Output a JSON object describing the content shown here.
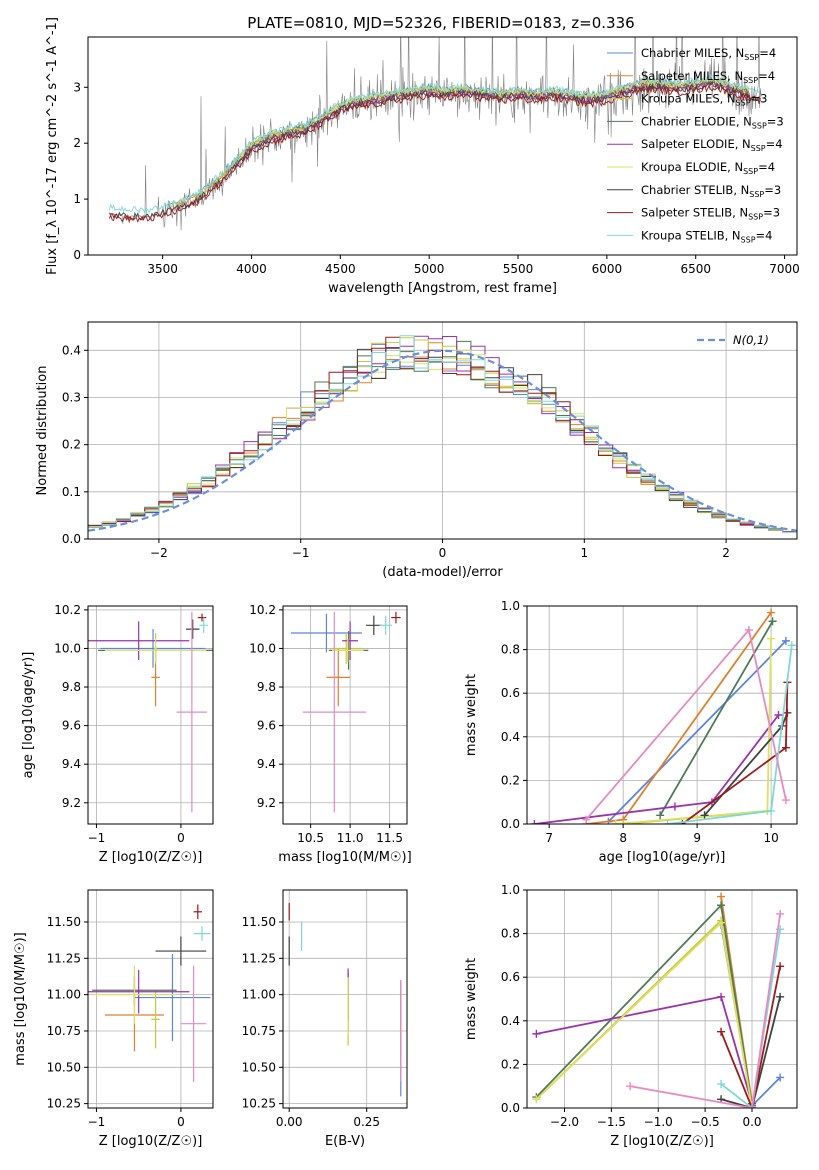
{
  "figure": {
    "title": "PLATE=0810, MJD=52326, FIBERID=0183, z=0.336"
  },
  "colors": {
    "grid": "#b0b0b0",
    "text": "#000000"
  },
  "chart_data": [
    {
      "id": "spectrum",
      "type": "line",
      "xlabel": "wavelength [Angstrom, rest frame]",
      "ylabel": "Flux [f_λ 10^-17 erg cm^-2 s^-1 A^-1]",
      "xlim": [
        3080,
        7070
      ],
      "ylim": [
        0,
        3.9
      ],
      "xticks": [
        3500,
        4000,
        4500,
        5000,
        5500,
        6000,
        6500,
        7000
      ],
      "yticks": [
        0,
        1,
        2,
        3
      ],
      "grid": false,
      "legend_position": "top-right",
      "data_x_range": [
        3200,
        6870
      ],
      "observed": {
        "name": "data",
        "color": "#808080",
        "x": [
          3200,
          3300,
          3400,
          3500,
          3600,
          3700,
          3800,
          3900,
          4000,
          4100,
          4200,
          4300,
          4400,
          4500,
          4600,
          4700,
          4800,
          4900,
          5000,
          5100,
          5200,
          5300,
          5400,
          5500,
          5600,
          5700,
          5800,
          5900,
          6000,
          6100,
          6200,
          6300,
          6400,
          6500,
          6600,
          6700,
          6800,
          6870
        ],
        "y": [
          0.72,
          0.7,
          0.68,
          0.75,
          0.85,
          1.0,
          1.25,
          1.55,
          1.9,
          2.05,
          2.15,
          2.2,
          2.4,
          2.6,
          2.7,
          2.75,
          2.8,
          2.85,
          2.9,
          2.85,
          2.9,
          2.85,
          2.8,
          2.85,
          2.8,
          2.85,
          2.8,
          2.75,
          2.8,
          2.9,
          3.0,
          3.0,
          2.95,
          3.0,
          3.05,
          2.95,
          2.85,
          2.8
        ]
      },
      "series": [
        {
          "name": "Chabrier MILES, N_SSP=4",
          "color": "#5b84e0",
          "model": "MILES",
          "dy": 0.1
        },
        {
          "name": "Salpeter MILES, N_SSP=4",
          "color": "#e0802d",
          "model": "MILES",
          "dy": 0.04
        },
        {
          "name": "Kroupa MILES, N_SSP=3",
          "color": "#c8c83a",
          "model": "MILES",
          "dy": 0.08
        },
        {
          "name": "Chabrier ELODIE, N_SSP=3",
          "color": "#4e7a55",
          "model": "ELODIE",
          "dy": 0.06
        },
        {
          "name": "Salpeter ELODIE, N_SSP=4",
          "color": "#9b30b0",
          "model": "ELODIE",
          "dy": 0.02
        },
        {
          "name": "Kroupa ELODIE, N_SSP=4",
          "color": "#dde060",
          "model": "ELODIE",
          "dy": 0.09
        },
        {
          "name": "Chabrier STELIB, N_SSP=3",
          "color": "#404040",
          "model": "STELIB",
          "dy": 0.0
        },
        {
          "name": "Salpeter STELIB, N_SSP=3",
          "color": "#a01818",
          "model": "STELIB",
          "dy": -0.05
        },
        {
          "name": "Kroupa STELIB, N_SSP=4",
          "color": "#7fd8d8",
          "model": "STELIB",
          "dy": 0.12
        }
      ],
      "model_ranges": {
        "MILES": [
          3540,
          6800
        ],
        "ELODIE": [
          3900,
          6800
        ],
        "STELIB": [
          3200,
          6870
        ]
      },
      "legend_entries": [
        {
          "prefix": "Chabrier MILES, N",
          "sub": "SSP",
          "suffix": "=4"
        },
        {
          "prefix": "Salpeter MILES, N",
          "sub": "SSP",
          "suffix": "=4"
        },
        {
          "prefix": "Kroupa MILES, N",
          "sub": "SSP",
          "suffix": "=3"
        },
        {
          "prefix": "Chabrier ELODIE, N",
          "sub": "SSP",
          "suffix": "=3"
        },
        {
          "prefix": "Salpeter ELODIE, N",
          "sub": "SSP",
          "suffix": "=4"
        },
        {
          "prefix": "Kroupa ELODIE, N",
          "sub": "SSP",
          "suffix": "=4"
        },
        {
          "prefix": "Chabrier STELIB, N",
          "sub": "SSP",
          "suffix": "=3"
        },
        {
          "prefix": "Salpeter STELIB, N",
          "sub": "SSP",
          "suffix": "=3"
        },
        {
          "prefix": "Kroupa STELIB, N",
          "sub": "SSP",
          "suffix": "=4"
        }
      ]
    },
    {
      "id": "residuals",
      "type": "histogram",
      "xlabel": "(data-model)/error",
      "ylabel": "Normed distribution",
      "xlim": [
        -2.5,
        2.5
      ],
      "ylim": [
        0,
        0.46
      ],
      "xticks": [
        -2,
        -1,
        0,
        1,
        2
      ],
      "yticks": [
        0.0,
        0.1,
        0.2,
        0.3,
        0.4
      ],
      "grid": true,
      "legend_position": "top-right",
      "reference_curve": {
        "name": "N(0,1)",
        "color": "#6a8fe0",
        "style": "dashed"
      },
      "bin_width": 0.1
    },
    {
      "id": "age-vs-Z",
      "type": "errorbar",
      "xlabel": "Z [log10(Z/Z☉)]",
      "ylabel": "age [log10(age/yr)]",
      "xlim": [
        -1.1,
        0.38
      ],
      "ylim": [
        9.09,
        10.22
      ],
      "xticks": [
        -1,
        0
      ],
      "yticks": [
        9.2,
        9.4,
        9.6,
        9.8,
        10.0,
        10.2
      ],
      "grid": true,
      "points": [
        {
          "color": "#5b84e0",
          "x": -0.33,
          "xerr": 0.62,
          "y": 10.0,
          "yerr": 0.1
        },
        {
          "color": "#e0802d",
          "x": -0.3,
          "xerr": 0.05,
          "y": 9.85,
          "yerr": 0.15
        },
        {
          "color": "#c8c83a",
          "x": -0.3,
          "xerr": 0.02,
          "y": 10.0,
          "yerr": 0.08
        },
        {
          "color": "#4e7a55",
          "x": -0.3,
          "xerr": 0.68,
          "y": 9.99,
          "yerr": 0.01
        },
        {
          "color": "#9b30b0",
          "x": -0.5,
          "xerr": 0.6,
          "y": 10.04,
          "yerr": 0.1
        },
        {
          "color": "#dde060",
          "x": -0.3,
          "xerr": 0.6,
          "y": 9.99,
          "yerr": 0.06
        },
        {
          "color": "#404040",
          "x": 0.14,
          "xerr": 0.08,
          "y": 10.1,
          "yerr": 0.05
        },
        {
          "color": "#a01818",
          "x": 0.25,
          "xerr": 0.05,
          "y": 10.16,
          "yerr": 0.02
        },
        {
          "color": "#7fd8d8",
          "x": 0.27,
          "xerr": 0.05,
          "y": 10.12,
          "yerr": 0.04
        },
        {
          "color": "#e88ac0",
          "x": 0.13,
          "xerr": 0.18,
          "y": 9.67,
          "yerr": 0.52
        }
      ]
    },
    {
      "id": "age-vs-mass",
      "type": "errorbar",
      "xlabel": "mass [log10(M/M☉)]",
      "ylabel": "",
      "xlim": [
        10.15,
        11.72
      ],
      "ylim": [
        9.09,
        10.22
      ],
      "xticks": [
        10.5,
        11.0,
        11.5
      ],
      "yticks": [
        9.2,
        9.4,
        9.6,
        9.8,
        10.0,
        10.2
      ],
      "grid": true,
      "points": [
        {
          "color": "#5b84e0",
          "x": 10.7,
          "xerr": 0.45,
          "y": 10.08,
          "yerr": 0.1
        },
        {
          "color": "#e0802d",
          "x": 10.85,
          "xerr": 0.15,
          "y": 9.85,
          "yerr": 0.15
        },
        {
          "color": "#c8c83a",
          "x": 10.95,
          "xerr": 0.2,
          "y": 10.0,
          "yerr": 0.08
        },
        {
          "color": "#4e7a55",
          "x": 10.98,
          "xerr": 0.25,
          "y": 9.99,
          "yerr": 0.1
        },
        {
          "color": "#9b30b0",
          "x": 11.0,
          "xerr": 0.1,
          "y": 10.04,
          "yerr": 0.1
        },
        {
          "color": "#dde060",
          "x": 10.97,
          "xerr": 0.2,
          "y": 9.99,
          "yerr": 0.06
        },
        {
          "color": "#404040",
          "x": 11.3,
          "xerr": 0.1,
          "y": 10.12,
          "yerr": 0.05
        },
        {
          "color": "#a01818",
          "x": 11.58,
          "xerr": 0.06,
          "y": 10.16,
          "yerr": 0.03
        },
        {
          "color": "#7fd8d8",
          "x": 11.45,
          "xerr": 0.08,
          "y": 10.12,
          "yerr": 0.05
        },
        {
          "color": "#e88ac0",
          "x": 10.8,
          "xerr": 0.4,
          "y": 9.67,
          "yerr": 0.52
        }
      ]
    },
    {
      "id": "massweight-vs-age",
      "type": "line",
      "xlabel": "age [log10(age/yr)]",
      "ylabel": "mass weight",
      "xlim": [
        6.7,
        10.35
      ],
      "ylim": [
        0,
        1.0
      ],
      "xticks": [
        7,
        8,
        9,
        10
      ],
      "yticks": [
        0.0,
        0.2,
        0.4,
        0.6,
        0.8,
        1.0
      ],
      "grid": true,
      "series": [
        {
          "color": "#5b84e0",
          "x": [
            7.8,
            10.2
          ],
          "y": [
            0.01,
            0.84
          ]
        },
        {
          "color": "#e0802d",
          "x": [
            7.5,
            8.0,
            10.0
          ],
          "y": [
            0.0,
            0.02,
            0.97
          ]
        },
        {
          "color": "#c8c83a",
          "x": [
            8.0,
            9.95
          ],
          "y": [
            0.0,
            0.06
          ]
        },
        {
          "color": "#4e7a55",
          "x": [
            8.5,
            10.02
          ],
          "y": [
            0.04,
            0.93
          ]
        },
        {
          "color": "#9b30b0",
          "x": [
            6.8,
            8.7,
            9.2,
            10.1
          ],
          "y": [
            0.0,
            0.08,
            0.1,
            0.5
          ]
        },
        {
          "color": "#dde060",
          "x": [
            7.9,
            9.95,
            10.0
          ],
          "y": [
            0.0,
            0.06,
            0.85
          ]
        },
        {
          "color": "#404040",
          "x": [
            9.1,
            10.15,
            10.22
          ],
          "y": [
            0.04,
            0.45,
            0.51
          ]
        },
        {
          "color": "#a01818",
          "x": [
            8.8,
            10.2,
            10.22
          ],
          "y": [
            0.0,
            0.35,
            0.65
          ]
        },
        {
          "color": "#7fd8d8",
          "x": [
            8.6,
            10.0,
            10.28
          ],
          "y": [
            0.0,
            0.06,
            0.82
          ]
        },
        {
          "color": "#e88ac0",
          "x": [
            7.5,
            9.7,
            10.2
          ],
          "y": [
            0.02,
            0.89,
            0.11
          ]
        }
      ]
    },
    {
      "id": "mass-vs-Z",
      "type": "errorbar",
      "xlabel": "Z [log10(Z/Z☉)]",
      "ylabel": "mass [log10(M/M☉)]",
      "xlim": [
        -1.1,
        0.38
      ],
      "ylim": [
        10.22,
        11.72
      ],
      "xticks": [
        -1,
        0
      ],
      "yticks": [
        10.25,
        10.5,
        10.75,
        11.0,
        11.25,
        11.5
      ],
      "grid": true,
      "points": [
        {
          "color": "#5b84e0",
          "x": -0.1,
          "xerr": 0.45,
          "y": 10.98,
          "yerr": 0.3
        },
        {
          "color": "#e0802d",
          "x": -0.55,
          "xerr": 0.35,
          "y": 10.86,
          "yerr": 0.25
        },
        {
          "color": "#c8c83a",
          "x": -0.3,
          "xerr": 0.05,
          "y": 10.83,
          "yerr": 0.2
        },
        {
          "color": "#4e7a55",
          "x": -0.55,
          "xerr": 0.5,
          "y": 11.03,
          "yerr": 0.1
        },
        {
          "color": "#9b30b0",
          "x": -0.5,
          "xerr": 0.6,
          "y": 11.02,
          "yerr": 0.15
        },
        {
          "color": "#dde060",
          "x": -0.55,
          "xerr": 0.5,
          "y": 11.0,
          "yerr": 0.2
        },
        {
          "color": "#404040",
          "x": 0.0,
          "xerr": 0.3,
          "y": 11.3,
          "yerr": 0.1
        },
        {
          "color": "#a01818",
          "x": 0.2,
          "xerr": 0.05,
          "y": 11.57,
          "yerr": 0.05
        },
        {
          "color": "#7fd8d8",
          "x": 0.25,
          "xerr": 0.1,
          "y": 11.42,
          "yerr": 0.05
        },
        {
          "color": "#e88ac0",
          "x": 0.15,
          "xerr": 0.15,
          "y": 10.8,
          "yerr": 0.4
        }
      ]
    },
    {
      "id": "mass-vs-ebv",
      "type": "errorbar",
      "xlabel": "E(B-V)",
      "ylabel": "",
      "xlim": [
        -0.02,
        0.38
      ],
      "ylim": [
        10.22,
        11.72
      ],
      "xticks": [
        0.0,
        0.25
      ],
      "yticks": [
        10.25,
        10.5,
        10.75,
        11.0,
        11.25,
        11.5
      ],
      "grid": true,
      "points": [
        {
          "color": "#5b84e0",
          "x": 0.36,
          "xerr": 0.0,
          "y": 10.7,
          "yerr": 0.4
        },
        {
          "color": "#e0802d",
          "x": 0.36,
          "xerr": 0.0,
          "y": 10.82,
          "yerr": 0.25
        },
        {
          "color": "#c8c83a",
          "x": 0.19,
          "xerr": 0.0,
          "y": 10.9,
          "yerr": 0.25
        },
        {
          "color": "#4e7a55",
          "x": 0.19,
          "xerr": 0.0,
          "y": 10.95,
          "yerr": 0.2
        },
        {
          "color": "#9b30b0",
          "x": 0.19,
          "xerr": 0.0,
          "y": 11.0,
          "yerr": 0.18
        },
        {
          "color": "#dde060",
          "x": 0.19,
          "xerr": 0.0,
          "y": 10.92,
          "yerr": 0.2
        },
        {
          "color": "#404040",
          "x": 0.0,
          "xerr": 0.0,
          "y": 11.3,
          "yerr": 0.1
        },
        {
          "color": "#a01818",
          "x": 0.0,
          "xerr": 0.0,
          "y": 11.57,
          "yerr": 0.06
        },
        {
          "color": "#7fd8d8",
          "x": 0.04,
          "xerr": 0.0,
          "y": 11.4,
          "yerr": 0.1
        },
        {
          "color": "#e88ac0",
          "x": 0.36,
          "xerr": 0.0,
          "y": 10.75,
          "yerr": 0.35
        }
      ]
    },
    {
      "id": "massweight-vs-Z",
      "type": "line",
      "xlabel": "Z [log10(Z/Z☉)]",
      "ylabel": "mass weight",
      "xlim": [
        -2.4,
        0.48
      ],
      "ylim": [
        0,
        1.0
      ],
      "xticks": [
        -2.0,
        -1.5,
        -1.0,
        -0.5,
        0.0
      ],
      "yticks": [
        0.0,
        0.2,
        0.4,
        0.6,
        0.8,
        1.0
      ],
      "grid": true,
      "series": [
        {
          "color": "#5b84e0",
          "x": [
            -0.33,
            0.0,
            0.3
          ],
          "y": [
            0.84,
            0.01,
            0.14
          ]
        },
        {
          "color": "#e0802d",
          "x": [
            -0.33,
            0.0
          ],
          "y": [
            0.97,
            0.02
          ]
        },
        {
          "color": "#c8c83a",
          "x": [
            -2.3,
            -0.33,
            0.0
          ],
          "y": [
            0.04,
            0.86,
            0.0
          ]
        },
        {
          "color": "#4e7a55",
          "x": [
            -2.3,
            -0.33,
            0.0
          ],
          "y": [
            0.05,
            0.93,
            0.01
          ]
        },
        {
          "color": "#9b30b0",
          "x": [
            -2.3,
            -0.33,
            0.0
          ],
          "y": [
            0.34,
            0.51,
            0.02
          ]
        },
        {
          "color": "#dde060",
          "x": [
            -2.3,
            -0.33,
            0.0
          ],
          "y": [
            0.04,
            0.85,
            0.0
          ]
        },
        {
          "color": "#404040",
          "x": [
            -0.33,
            0.0,
            0.3
          ],
          "y": [
            0.04,
            0.0,
            0.51
          ]
        },
        {
          "color": "#a01818",
          "x": [
            -0.33,
            0.0,
            0.3
          ],
          "y": [
            0.35,
            0.0,
            0.65
          ]
        },
        {
          "color": "#7fd8d8",
          "x": [
            -0.33,
            0.0,
            0.3
          ],
          "y": [
            0.11,
            0.0,
            0.82
          ]
        },
        {
          "color": "#e88ac0",
          "x": [
            -1.3,
            0.0,
            0.3
          ],
          "y": [
            0.1,
            0.0,
            0.89
          ]
        }
      ]
    }
  ]
}
